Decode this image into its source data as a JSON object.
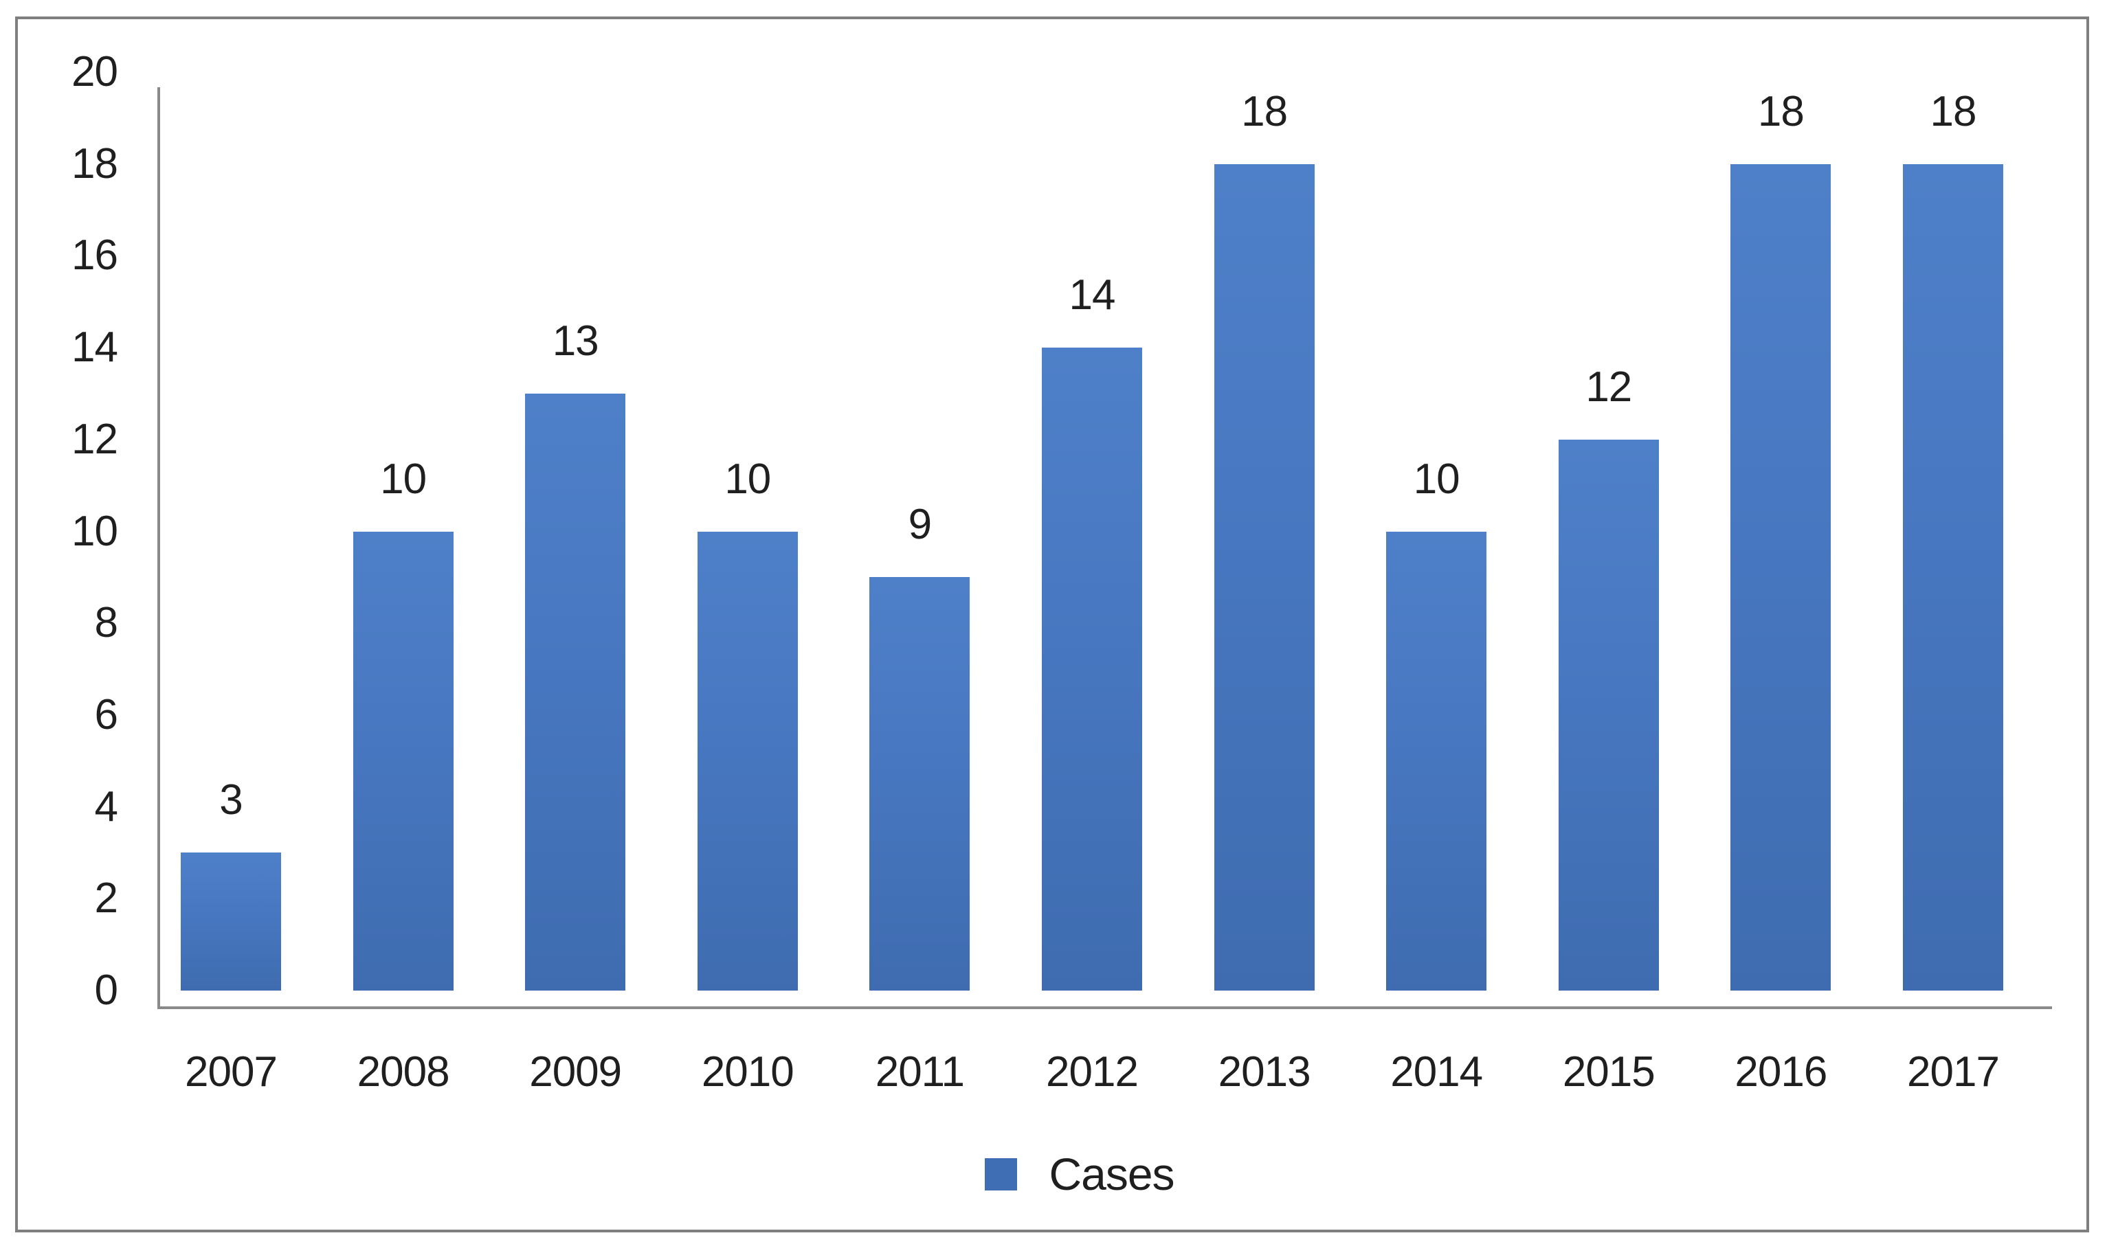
{
  "chart_data": {
    "type": "bar",
    "title": "",
    "xlabel": "",
    "ylabel": "",
    "categories": [
      "2007",
      "2008",
      "2009",
      "2010",
      "2011",
      "2012",
      "2013",
      "2014",
      "2015",
      "2016",
      "2017"
    ],
    "values": [
      3,
      10,
      13,
      10,
      9,
      14,
      18,
      10,
      12,
      18,
      18
    ],
    "series_name": "Cases",
    "ylim": [
      0,
      20
    ],
    "ytick_step": 2,
    "yticks": [
      0,
      2,
      4,
      6,
      8,
      10,
      12,
      14,
      16,
      18,
      20
    ],
    "grid": false,
    "data_labels": true,
    "legend": {
      "position": "bottom",
      "label": "Cases"
    },
    "colors": {
      "bar_top": "#4e80c9",
      "bar_mid": "#4777c0",
      "bar_bottom": "#3f6cb0",
      "swatch": "#3f6eb5",
      "axis": "#8a8a8a",
      "figure_border": "#7f7f7f",
      "text": "#1f1f1f",
      "background": "#ffffff"
    }
  }
}
